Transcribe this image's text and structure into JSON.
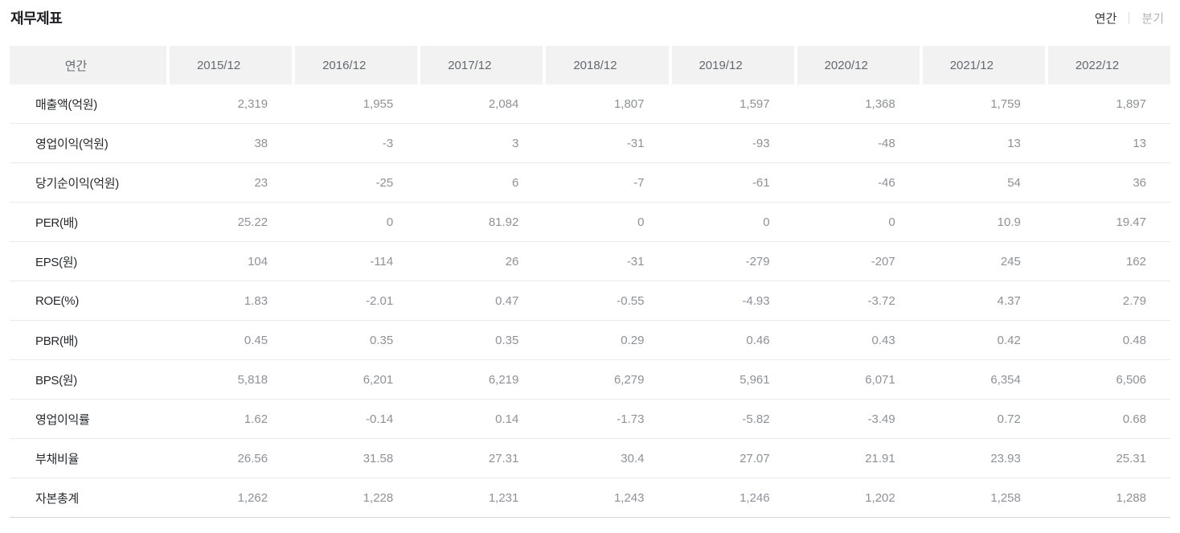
{
  "page": {
    "title": "재무제표",
    "toggle": {
      "annual_label": "연간",
      "quarterly_label": "분기",
      "active": "연간"
    }
  },
  "table": {
    "header": [
      "연간",
      "2015/12",
      "2016/12",
      "2017/12",
      "2018/12",
      "2019/12",
      "2020/12",
      "2021/12",
      "2022/12"
    ],
    "rows": [
      {
        "label": "매출액(억원)",
        "values": [
          "2,319",
          "1,955",
          "2,084",
          "1,807",
          "1,597",
          "1,368",
          "1,759",
          "1,897"
        ]
      },
      {
        "label": "영업이익(억원)",
        "values": [
          "38",
          "-3",
          "3",
          "-31",
          "-93",
          "-48",
          "13",
          "13"
        ]
      },
      {
        "label": "당기순이익(억원)",
        "values": [
          "23",
          "-25",
          "6",
          "-7",
          "-61",
          "-46",
          "54",
          "36"
        ]
      },
      {
        "label": "PER(배)",
        "values": [
          "25.22",
          "0",
          "81.92",
          "0",
          "0",
          "0",
          "10.9",
          "19.47"
        ]
      },
      {
        "label": "EPS(원)",
        "values": [
          "104",
          "-114",
          "26",
          "-31",
          "-279",
          "-207",
          "245",
          "162"
        ]
      },
      {
        "label": "ROE(%)",
        "values": [
          "1.83",
          "-2.01",
          "0.47",
          "-0.55",
          "-4.93",
          "-3.72",
          "4.37",
          "2.79"
        ]
      },
      {
        "label": "PBR(배)",
        "values": [
          "0.45",
          "0.35",
          "0.35",
          "0.29",
          "0.46",
          "0.43",
          "0.42",
          "0.48"
        ]
      },
      {
        "label": "BPS(원)",
        "values": [
          "5,818",
          "6,201",
          "6,219",
          "6,279",
          "5,961",
          "6,071",
          "6,354",
          "6,506"
        ]
      },
      {
        "label": "영업이익률",
        "values": [
          "1.62",
          "-0.14",
          "0.14",
          "-1.73",
          "-5.82",
          "-3.49",
          "0.72",
          "0.68"
        ]
      },
      {
        "label": "부채비율",
        "values": [
          "26.56",
          "31.58",
          "27.31",
          "30.4",
          "27.07",
          "21.91",
          "23.93",
          "25.31"
        ]
      },
      {
        "label": "자본총계",
        "values": [
          "1,262",
          "1,228",
          "1,231",
          "1,243",
          "1,246",
          "1,202",
          "1,258",
          "1,288"
        ]
      }
    ]
  },
  "colors": {
    "title-color": "#1e1f23",
    "header-bg": "#f2f2f2",
    "header-text": "#65696f",
    "label-text": "#26282c",
    "value-text": "#8e9197",
    "row-border": "#eaeaea",
    "table-bottom-border": "#d7d7d7",
    "toggle-active": "#333333",
    "toggle-inactive": "#b4b4b8",
    "divider": "#dcdcdc"
  }
}
